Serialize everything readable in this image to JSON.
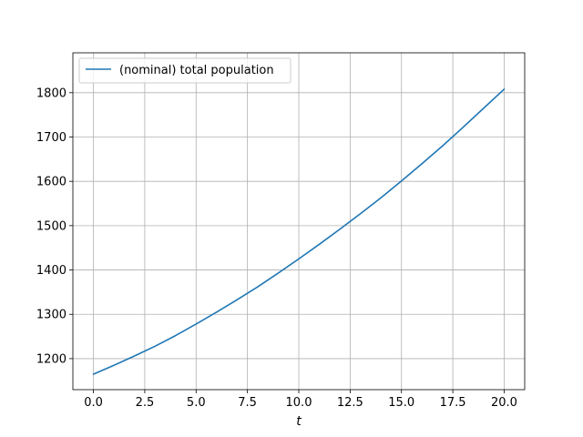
{
  "chart_data": {
    "type": "line",
    "title": "",
    "xlabel": "t",
    "ylabel": "",
    "xlim": [
      -1.0,
      21.0
    ],
    "ylim": [
      1130,
      1890
    ],
    "xticks": [
      0.0,
      2.5,
      5.0,
      7.5,
      10.0,
      12.5,
      15.0,
      17.5,
      20.0
    ],
    "xtick_labels": [
      "0.0",
      "2.5",
      "5.0",
      "7.5",
      "10.0",
      "12.5",
      "15.0",
      "17.5",
      "20.0"
    ],
    "yticks": [
      1200,
      1300,
      1400,
      1500,
      1600,
      1700,
      1800
    ],
    "ytick_labels": [
      "1200",
      "1300",
      "1400",
      "1500",
      "1600",
      "1700",
      "1800"
    ],
    "grid": true,
    "legend_position": "upper-left",
    "series": [
      {
        "name": "(nominal) total population",
        "color": "#1f77b4",
        "x": [
          0,
          1,
          2,
          3,
          4,
          5,
          6,
          7,
          8,
          9,
          10,
          11,
          12,
          13,
          14,
          15,
          16,
          17,
          18,
          19,
          20
        ],
        "y": [
          1165,
          1185,
          1206,
          1228,
          1252,
          1278,
          1305,
          1333,
          1362,
          1393,
          1425,
          1458,
          1492,
          1527,
          1563,
          1601,
          1640,
          1680,
          1722,
          1765,
          1808
        ]
      }
    ]
  }
}
